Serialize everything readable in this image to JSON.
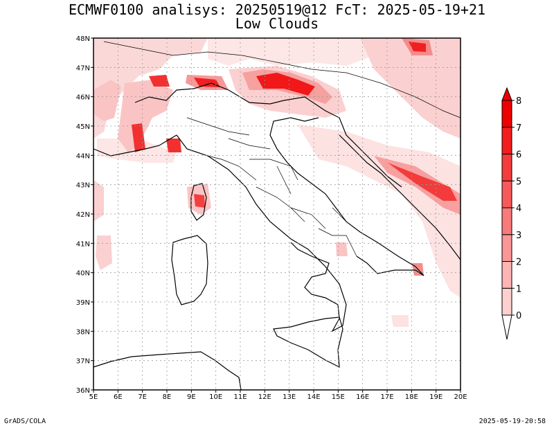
{
  "header": {
    "title_line1": "ECMWF0100 analisys: 20250519@12 FcT: 2025-05-19+21",
    "title_line2": "Low Clouds"
  },
  "footer": {
    "credit": "GrADS/COLA",
    "timestamp": "2025-05-19-20:58"
  },
  "map": {
    "lon_range": [
      5,
      20
    ],
    "lat_range": [
      36,
      48
    ],
    "lon_ticks": [
      "5E",
      "6E",
      "7E",
      "8E",
      "9E",
      "10E",
      "11E",
      "12E",
      "13E",
      "14E",
      "15E",
      "16E",
      "17E",
      "18E",
      "19E",
      "20E"
    ],
    "lat_ticks": [
      "36N",
      "37N",
      "38N",
      "39N",
      "40N",
      "41N",
      "42N",
      "43N",
      "44N",
      "45N",
      "46N",
      "47N",
      "48N"
    ],
    "grid": "dotted"
  },
  "colorbar": {
    "levels": [
      "0",
      "1",
      "2",
      "3",
      "4",
      "5",
      "6",
      "7",
      "8"
    ],
    "colors": [
      "#ffe6e6",
      "#fdd0d0",
      "#fcb4b4",
      "#fa9696",
      "#f87a7a",
      "#f65a5a",
      "#f43c3c",
      "#f21e1e",
      "#ee0000"
    ]
  }
}
